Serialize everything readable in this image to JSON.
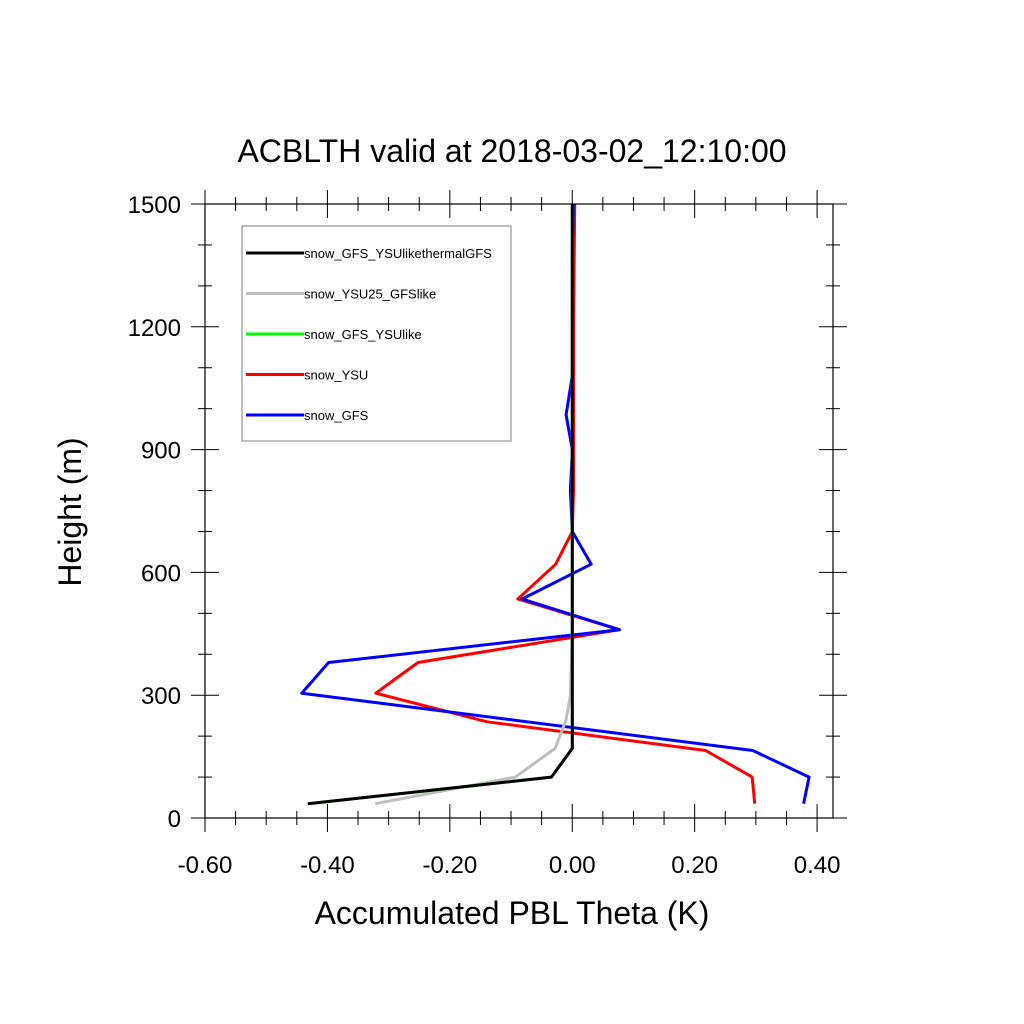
{
  "chart_data": {
    "type": "line",
    "title": "ACBLTH valid at 2018-03-02_12:10:00",
    "xlabel": "Accumulated PBL Theta (K)",
    "ylabel": "Height (m)",
    "xlim": [
      -0.6,
      0.426
    ],
    "ylim": [
      0,
      1500
    ],
    "x_ticks": [
      "-0.60",
      "-0.40",
      "-0.20",
      "0.00",
      "0.20",
      "0.40"
    ],
    "y_ticks": [
      "0",
      "300",
      "600",
      "900",
      "1200",
      "1500"
    ],
    "legend_position": "top-left",
    "series": [
      {
        "name": "snow_GFS_YSUlikethermalGFS",
        "color": "#000000",
        "points": [
          [
            -0.432,
            35
          ],
          [
            -0.034,
            100
          ],
          [
            0.0,
            170
          ],
          [
            0.0,
            300
          ],
          [
            0.0,
            460
          ],
          [
            0.0,
            600
          ],
          [
            0.0,
            700
          ],
          [
            0.0,
            900
          ],
          [
            0.0,
            1200
          ],
          [
            0.0,
            1500
          ]
        ]
      },
      {
        "name": "snow_YSU25_GFSlike",
        "color": "#bfbfbf",
        "points": [
          [
            -0.322,
            35
          ],
          [
            -0.093,
            100
          ],
          [
            -0.028,
            170
          ],
          [
            -0.01,
            240
          ],
          [
            -0.003,
            300
          ],
          [
            0.0,
            460
          ],
          [
            0.0,
            700
          ],
          [
            0.0,
            1200
          ],
          [
            0.0,
            1500
          ]
        ]
      },
      {
        "name": "snow_GFS_YSUlike",
        "color": "#00ff00",
        "points": [
          [
            -0.432,
            35
          ],
          [
            -0.034,
            100
          ],
          [
            0.0,
            170
          ],
          [
            0.0,
            300
          ],
          [
            0.0,
            600
          ],
          [
            0.0,
            900
          ],
          [
            0.0,
            1200
          ],
          [
            0.0,
            1500
          ]
        ]
      },
      {
        "name": "snow_YSU",
        "color": "#ff0000",
        "points": [
          [
            0.298,
            35
          ],
          [
            0.294,
            100
          ],
          [
            0.218,
            165
          ],
          [
            -0.139,
            235
          ],
          [
            -0.321,
            305
          ],
          [
            -0.252,
            380
          ],
          [
            0.077,
            460
          ],
          [
            -0.089,
            535
          ],
          [
            -0.027,
            620
          ],
          [
            0.0,
            700
          ],
          [
            0.002,
            800
          ],
          [
            0.002,
            900
          ],
          [
            0.002,
            1200
          ],
          [
            0.004,
            1500
          ]
        ]
      },
      {
        "name": "snow_GFS",
        "color": "#0000ff",
        "points": [
          [
            0.378,
            35
          ],
          [
            0.387,
            100
          ],
          [
            0.295,
            165
          ],
          [
            -0.442,
            305
          ],
          [
            -0.398,
            380
          ],
          [
            0.077,
            460
          ],
          [
            -0.082,
            535
          ],
          [
            0.031,
            620
          ],
          [
            0.0,
            700
          ],
          [
            -0.003,
            800
          ],
          [
            0.0,
            900
          ],
          [
            -0.01,
            985
          ],
          [
            0.0,
            1080
          ],
          [
            0.0,
            1200
          ],
          [
            0.0,
            1400
          ],
          [
            0.002,
            1500
          ]
        ]
      }
    ]
  }
}
